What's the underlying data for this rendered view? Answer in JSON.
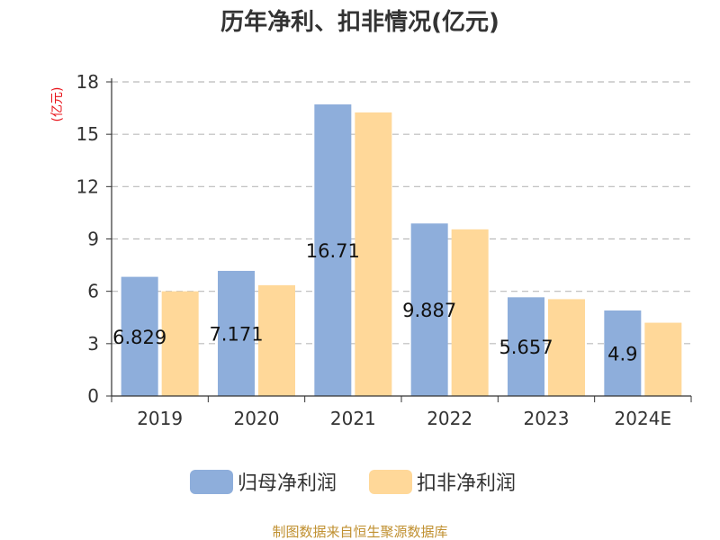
{
  "chart_data": {
    "type": "bar",
    "title": "历年净利、扣非情况(亿元)",
    "ylabel": "(亿元)",
    "xlabel": "",
    "ylim": [
      0,
      18
    ],
    "yticks": [
      0,
      3,
      6,
      9,
      12,
      15,
      18
    ],
    "grid": true,
    "legend_position": "bottom",
    "categories": [
      "2019",
      "2020",
      "2021",
      "2022",
      "2023",
      "2024E"
    ],
    "series": [
      {
        "name": "归母净利润",
        "color": "#8eaedb",
        "values": [
          6.829,
          7.171,
          16.71,
          9.887,
          5.657,
          4.9
        ],
        "labels": [
          "6.829",
          "7.171",
          "16.71",
          "9.887",
          "5.657",
          "4.9"
        ]
      },
      {
        "name": "扣非净利润",
        "color": "#ffd899",
        "values": [
          6.0,
          6.35,
          16.25,
          9.55,
          5.55,
          4.2
        ]
      }
    ],
    "source": "制图数据来自恒生聚源数据库"
  }
}
